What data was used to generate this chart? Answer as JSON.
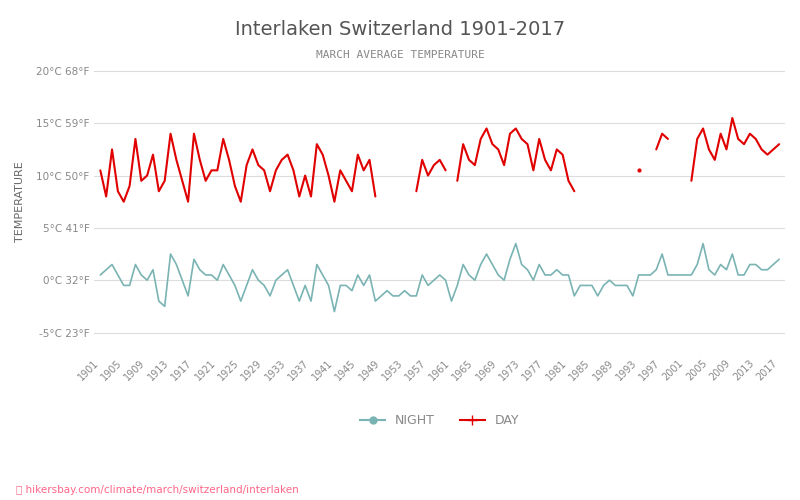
{
  "title": "Interlaken Switzerland 1901-2017",
  "subtitle": "MARCH AVERAGE TEMPERATURE",
  "ylabel": "TEMPERATURE",
  "start_year": 1901,
  "end_year": 2017,
  "ylim": [
    -7,
    22
  ],
  "yticks_c": [
    -5,
    0,
    5,
    10,
    15,
    20
  ],
  "yticks_f": [
    23,
    32,
    41,
    50,
    59,
    68
  ],
  "background_color": "#ffffff",
  "grid_color": "#dddddd",
  "day_color": "#e00000",
  "night_color": "#7ab3b3",
  "title_color": "#555555",
  "subtitle_color": "#888888",
  "ylabel_color": "#666666",
  "tick_color": "#888888",
  "footer_text": "hikersbay.com/climate/march/switzerland/interlaken",
  "footer_color": "#ff6688",
  "legend_night": "NIGHT",
  "legend_day": "DAY",
  "day_temps": [
    10.5,
    8.0,
    12.5,
    8.5,
    7.5,
    9.0,
    13.5,
    9.5,
    10.0,
    12.0,
    8.5,
    9.5,
    14.0,
    11.5,
    9.5,
    7.5,
    14.0,
    11.5,
    9.5,
    10.5,
    10.5,
    13.5,
    11.5,
    9.0,
    7.5,
    11.0,
    12.5,
    11.0,
    10.5,
    8.5,
    10.5,
    11.5,
    12.0,
    10.5,
    8.0,
    10.0,
    8.0,
    13.0,
    12.0,
    10.0,
    7.5,
    10.5,
    9.5,
    8.5,
    12.0,
    10.5,
    11.5,
    8.0,
    null,
    null,
    null,
    null,
    null,
    null,
    8.5,
    11.5,
    10.0,
    11.0,
    11.5,
    10.5,
    null,
    9.5,
    13.0,
    11.5,
    11.0,
    13.5,
    14.5,
    13.0,
    12.5,
    11.0,
    14.0,
    14.5,
    13.5,
    13.0,
    10.5,
    13.5,
    11.5,
    10.5,
    12.5,
    12.0,
    9.5,
    8.5,
    null,
    null,
    null,
    null,
    null,
    null,
    null,
    null,
    null,
    null,
    10.5,
    null,
    null,
    12.5,
    14.0,
    13.5,
    null,
    null,
    null,
    9.5,
    13.5,
    14.5,
    12.5,
    11.5,
    14.0,
    12.5,
    15.5,
    13.5,
    13.0,
    14.0,
    13.5,
    12.5,
    12.0,
    12.5,
    13.0
  ],
  "night_temps": [
    0.5,
    1.0,
    1.5,
    0.5,
    -0.5,
    -0.5,
    1.5,
    0.5,
    0.0,
    1.0,
    -2.0,
    -2.5,
    2.5,
    1.5,
    0.0,
    -1.5,
    2.0,
    1.0,
    0.5,
    0.5,
    0.0,
    1.5,
    0.5,
    -0.5,
    -2.0,
    -0.5,
    1.0,
    0.0,
    -0.5,
    -1.5,
    0.0,
    0.5,
    1.0,
    -0.5,
    -2.0,
    -0.5,
    -2.0,
    1.5,
    0.5,
    -0.5,
    -3.0,
    -0.5,
    -0.5,
    -1.0,
    0.5,
    -0.5,
    0.5,
    -2.0,
    -1.5,
    -1.0,
    -1.5,
    -1.5,
    -1.0,
    -1.5,
    -1.5,
    0.5,
    -0.5,
    0.0,
    0.5,
    0.0,
    -2.0,
    -0.5,
    1.5,
    0.5,
    0.0,
    1.5,
    2.5,
    1.5,
    0.5,
    0.0,
    2.0,
    3.5,
    1.5,
    1.0,
    0.0,
    1.5,
    0.5,
    0.5,
    1.0,
    0.5,
    0.5,
    -1.5,
    -0.5,
    -0.5,
    -0.5,
    -1.5,
    -0.5,
    0.0,
    -0.5,
    -0.5,
    -0.5,
    -1.5,
    0.5,
    0.5,
    0.5,
    1.0,
    2.5,
    0.5,
    0.5,
    0.5,
    0.5,
    0.5,
    1.5,
    3.5,
    1.0,
    0.5,
    1.5,
    1.0,
    2.5,
    0.5,
    0.5,
    1.5,
    1.5,
    1.0,
    1.0,
    1.5,
    2.0
  ]
}
